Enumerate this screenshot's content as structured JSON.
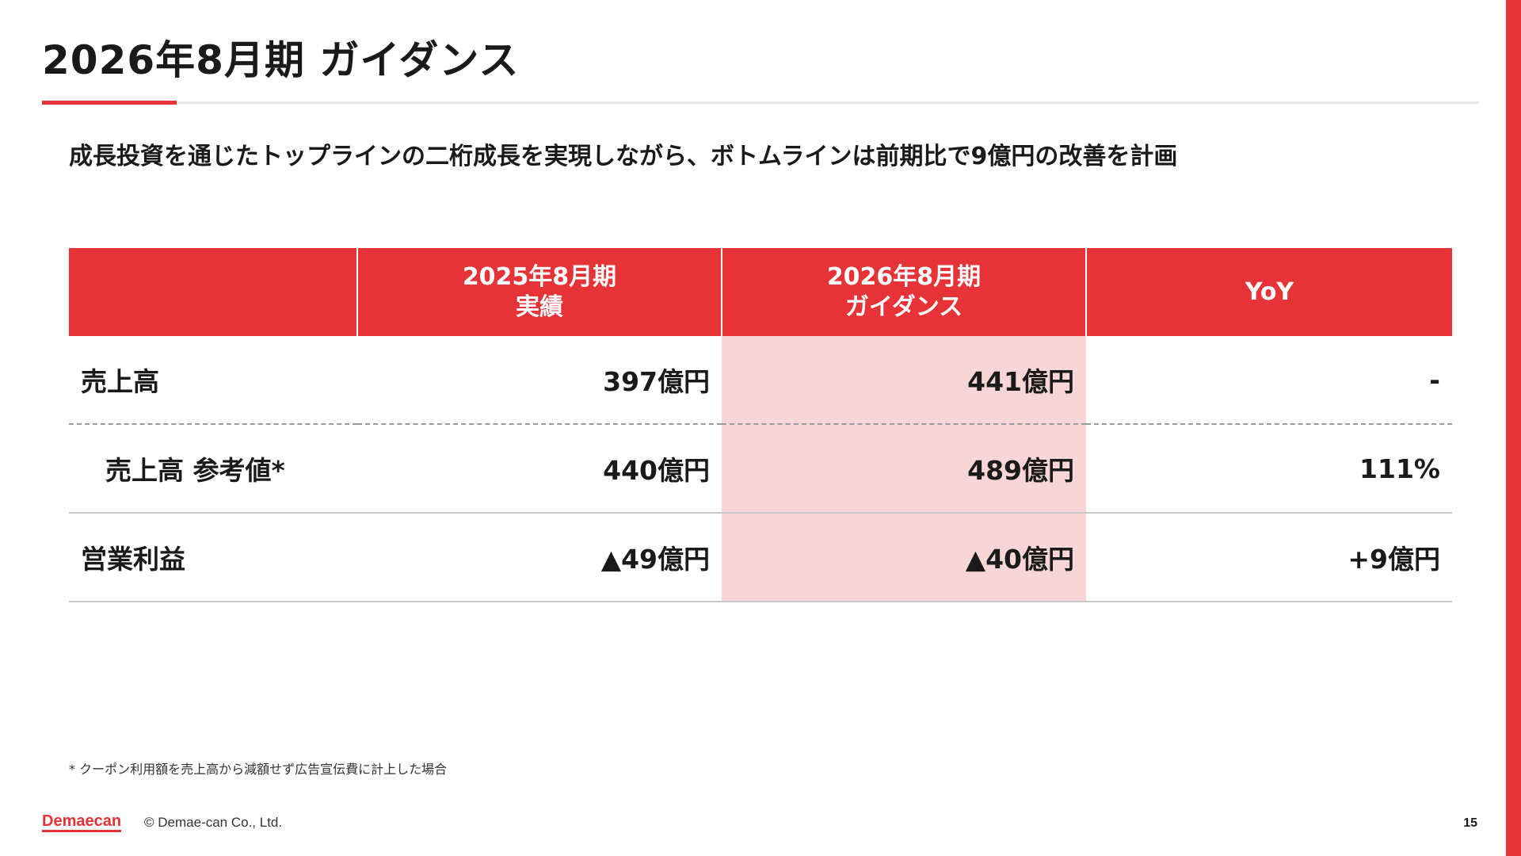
{
  "page": {
    "title": "2026年8月期 ガイダンス",
    "subtitle": "成長投資を通じたトップラインの二桁成長を実現しながら、ボトムラインは前期比で9億円の改善を計画",
    "accent_color": "#e63338",
    "highlight_color": "#f8d6d7"
  },
  "table": {
    "headers": [
      {
        "line1": "",
        "line2": ""
      },
      {
        "line1": "2025年8月期",
        "line2": "実績"
      },
      {
        "line1": "2026年8月期",
        "line2": "ガイダンス"
      },
      {
        "line1": "YoY",
        "line2": ""
      }
    ],
    "rows": [
      {
        "label": "売上高",
        "fy2025": "397億円",
        "fy2026": "441億円",
        "yoy": "-"
      },
      {
        "label": "売上高 参考値*",
        "fy2025": "440億円",
        "fy2026": "489億円",
        "yoy": "111%"
      },
      {
        "label": "営業利益",
        "fy2025": "▲49億円",
        "fy2026": "▲40億円",
        "yoy": "+9億円"
      }
    ]
  },
  "footnote": "* クーポン利用額を売上高から減額せず広告宣伝費に計上した場合",
  "footer": {
    "logo_text": "Demaecan",
    "copyright": "© Demae-can Co., Ltd.",
    "page_number": "15"
  }
}
